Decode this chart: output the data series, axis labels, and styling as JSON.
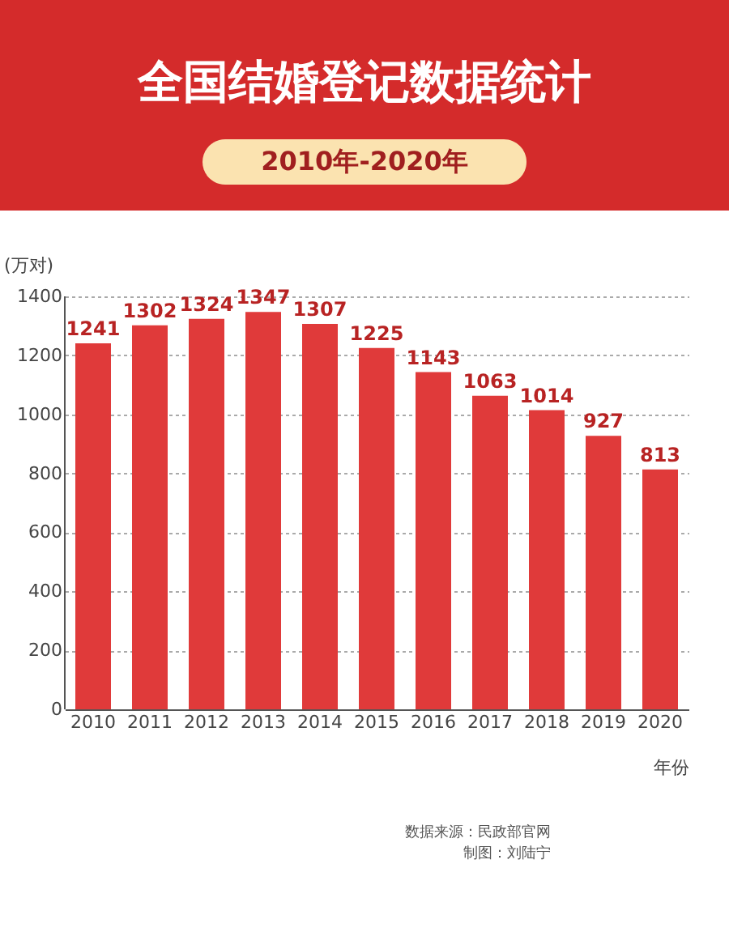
{
  "chart_data": {
    "type": "bar",
    "title": "全国结婚登记数据统计",
    "subtitle": "2010年-2020年",
    "categories": [
      "2010",
      "2011",
      "2012",
      "2013",
      "2014",
      "2015",
      "2016",
      "2017",
      "2018",
      "2019",
      "2020"
    ],
    "values": [
      1241,
      1302,
      1324,
      1347,
      1307,
      1225,
      1143,
      1063,
      1014,
      927,
      813
    ],
    "color": "#e03a3a",
    "ylabel": "(万对)",
    "xlabel": "年份",
    "ylim": [
      0,
      1400
    ],
    "yticks": [
      0,
      200,
      400,
      600,
      800,
      1000,
      1200,
      1400
    ],
    "grid": "y",
    "data_labels": true,
    "annotations": [
      "数据来源：民政部官网",
      "制图：刘陆宁"
    ]
  }
}
